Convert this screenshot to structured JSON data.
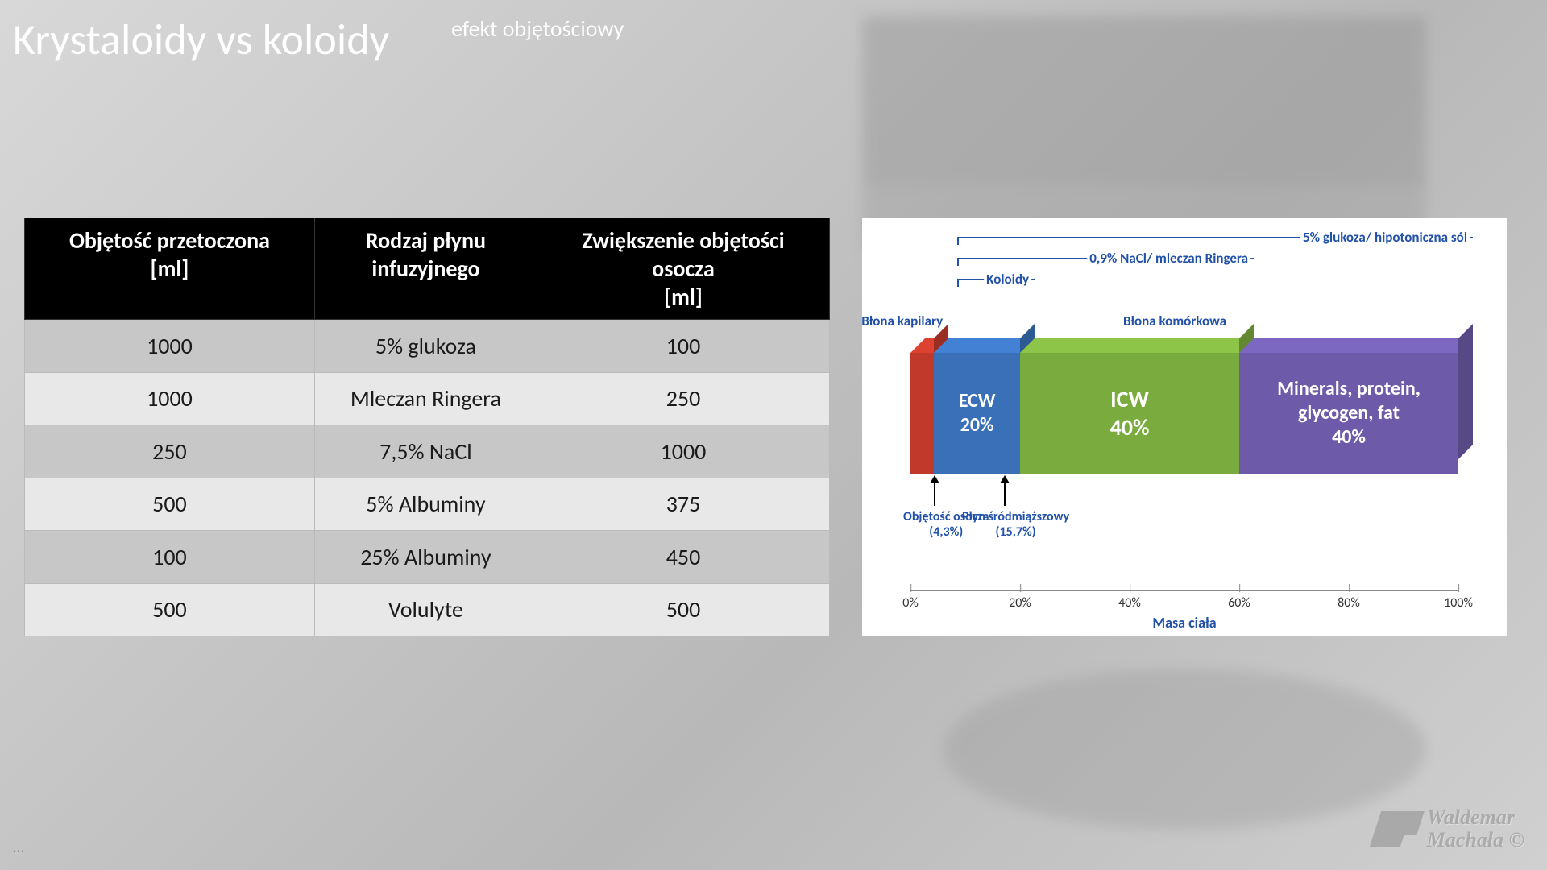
{
  "title": {
    "main": "Krystaloidy vs koloidy",
    "sup": "efekt objętościowy"
  },
  "table": {
    "columns": [
      "Objętość przetoczona\n[ml]",
      "Rodzaj płynu\ninfuzyjnego",
      "Zwiększenie objętości\nosocza\n[ml]"
    ],
    "rows": [
      [
        "1000",
        "5% glukoza",
        "100"
      ],
      [
        "1000",
        "Mleczan Ringera",
        "250"
      ],
      [
        "250",
        "7,5% NaCl",
        "1000"
      ],
      [
        "500",
        "5% Albuminy",
        "375"
      ],
      [
        "100",
        "25% Albuminy",
        "450"
      ],
      [
        "500",
        "Volulyte",
        "500"
      ]
    ],
    "header_bg": "#000000",
    "header_fg": "#ffffff",
    "row_odd_bg": "#c7c7c7",
    "row_even_bg": "#e8e8e8",
    "fontsize": 28
  },
  "chart": {
    "type": "stacked-3d-bar",
    "background_color": "#ffffff",
    "annot_color": "#2251a8",
    "segments": [
      {
        "key": "plasma_red",
        "label": "",
        "width_pct": 4.3,
        "color": "#c0392b"
      },
      {
        "key": "ecw_blue",
        "label": "ECW\n20%",
        "width_pct": 15.7,
        "color": "#3a70b8",
        "label_fontsize": 24
      },
      {
        "key": "icw_green",
        "label": "ICW\n40%",
        "width_pct": 40,
        "color": "#7aab3f",
        "label_fontsize": 28
      },
      {
        "key": "mpg_purple",
        "label": "Minerals, protein,\nglycogen, fat\n40%",
        "width_pct": 40,
        "color": "#6d5aa8",
        "label_fontsize": 24
      }
    ],
    "annotations_top": [
      {
        "text": "5% glukoza/ hipotoniczna sól",
        "extent_to_pct": 100
      },
      {
        "text": "0,9% NaCl/ mleczan Ringera",
        "extent_to_pct": 60
      },
      {
        "text": "Koloidy",
        "extent_to_pct": 20
      }
    ],
    "labels_inside_bar": [
      {
        "text": "Błona kapilary",
        "at_pct": 4.3
      },
      {
        "text": "Błona komórkowa",
        "at_pct": 30
      }
    ],
    "arrows_below": [
      {
        "text": "Objętość osocza\n(4,3%)",
        "at_pct": 4.3
      },
      {
        "text": "Płyn śródmiąższowy\n(15,7%)",
        "at_pct": 17
      }
    ],
    "axis": {
      "label": "Masa ciała",
      "ticks": [
        "0%",
        "20%",
        "40%",
        "60%",
        "80%",
        "100%"
      ],
      "tick_positions_pct": [
        0,
        20,
        40,
        60,
        80,
        100
      ]
    }
  },
  "watermark": {
    "line1": "Waldemar",
    "line2": "Machała ©"
  },
  "ellipsis": "…"
}
